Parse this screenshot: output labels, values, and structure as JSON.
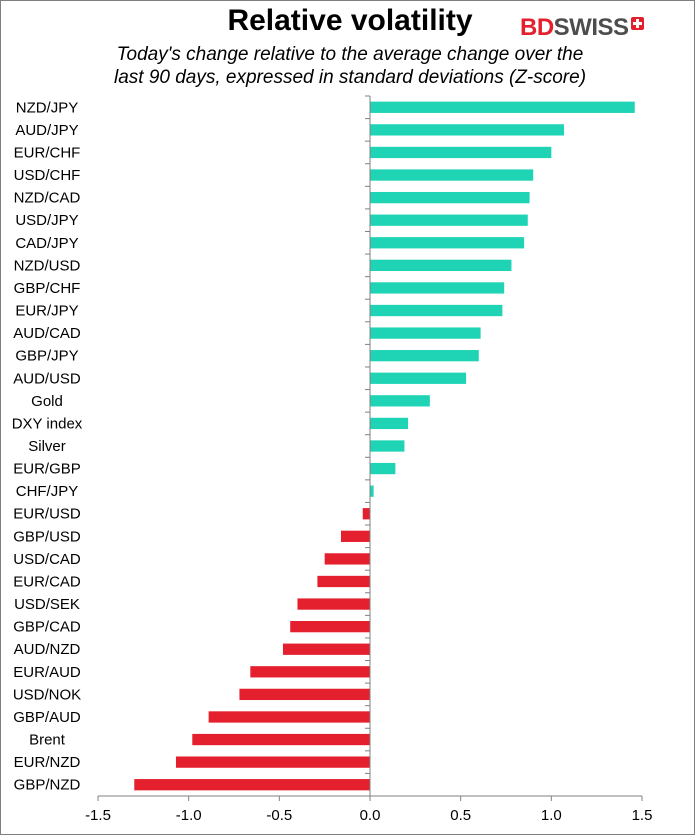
{
  "title": "Relative volatility",
  "subtitle_line1": "Today's change relative to the  average change over the",
  "subtitle_line2": "last 90 days, expressed in standard deviations (Z-score)",
  "logo": {
    "part1": "BD",
    "part2": "SWISS",
    "icon": "swiss-cross-icon"
  },
  "colors": {
    "positive": "#1fd4b4",
    "negative": "#e5202e",
    "axis": "#808080"
  },
  "chart_data": {
    "type": "bar",
    "orientation": "horizontal",
    "categories": [
      "NZD/JPY",
      "AUD/JPY",
      "EUR/CHF",
      "USD/CHF",
      "NZD/CAD",
      "USD/JPY",
      "CAD/JPY",
      "NZD/USD",
      "GBP/CHF",
      "EUR/JPY",
      "AUD/CAD",
      "GBP/JPY",
      "AUD/USD",
      "Gold",
      "DXY index",
      "Silver",
      "EUR/GBP",
      "CHF/JPY",
      "EUR/USD",
      "GBP/USD",
      "USD/CAD",
      "EUR/CAD",
      "USD/SEK",
      "GBP/CAD",
      "AUD/NZD",
      "EUR/AUD",
      "USD/NOK",
      "GBP/AUD",
      "Brent",
      "EUR/NZD",
      "GBP/NZD"
    ],
    "values": [
      1.46,
      1.07,
      1.0,
      0.9,
      0.88,
      0.87,
      0.85,
      0.78,
      0.74,
      0.73,
      0.61,
      0.6,
      0.53,
      0.33,
      0.21,
      0.19,
      0.14,
      0.02,
      -0.04,
      -0.16,
      -0.25,
      -0.29,
      -0.4,
      -0.44,
      -0.48,
      -0.66,
      -0.72,
      -0.89,
      -0.98,
      -1.07,
      -1.3
    ],
    "xlim": [
      -1.5,
      1.5
    ],
    "xticks": [
      -1.5,
      -1.0,
      -0.5,
      0.0,
      0.5,
      1.0,
      1.5
    ],
    "xtick_labels": [
      "-1.5",
      "-1.0",
      "-0.5",
      "0.0",
      "0.5",
      "1.0",
      "1.5"
    ],
    "grid": false,
    "legend": "none"
  }
}
